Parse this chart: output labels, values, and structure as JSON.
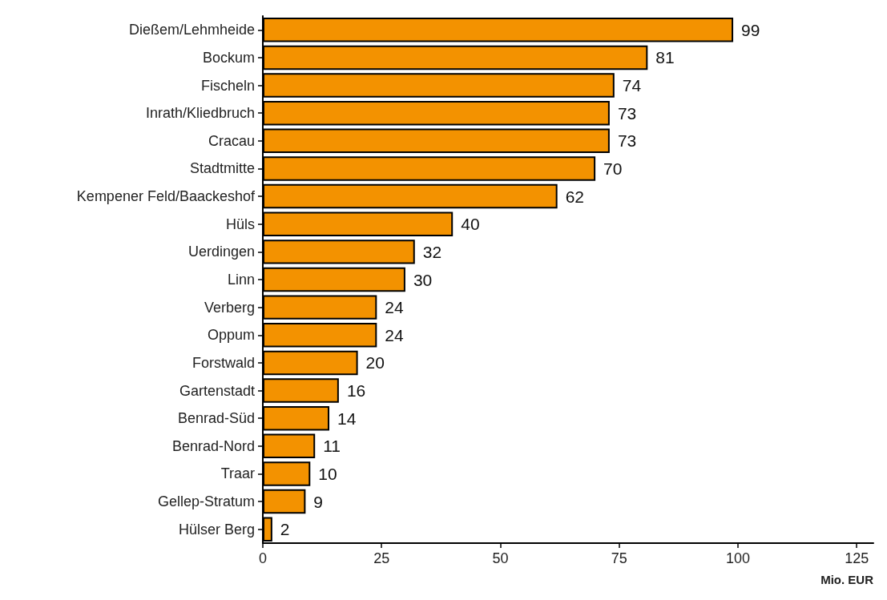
{
  "chart_data": {
    "type": "bar",
    "orientation": "horizontal",
    "xlabel": "Mio. EUR",
    "categories": [
      "Dießem/Lehmheide",
      "Bockum",
      "Fischeln",
      "Inrath/Kliedbruch",
      "Cracau",
      "Stadtmitte",
      "Kempener Feld/Baackeshof",
      "Hüls",
      "Uerdingen",
      "Linn",
      "Verberg",
      "Oppum",
      "Forstwald",
      "Gartenstadt",
      "Benrad-Süd",
      "Benrad-Nord",
      "Traar",
      "Gellep-Stratum",
      "Hülser Berg"
    ],
    "values": [
      99,
      81,
      74,
      73,
      73,
      70,
      62,
      40,
      32,
      30,
      24,
      24,
      20,
      16,
      14,
      11,
      10,
      9,
      2
    ],
    "color": "#f39200",
    "data_labels": true,
    "xlim": [
      0,
      128.5
    ],
    "xticks": [
      0,
      25,
      50,
      75,
      100,
      125
    ]
  }
}
